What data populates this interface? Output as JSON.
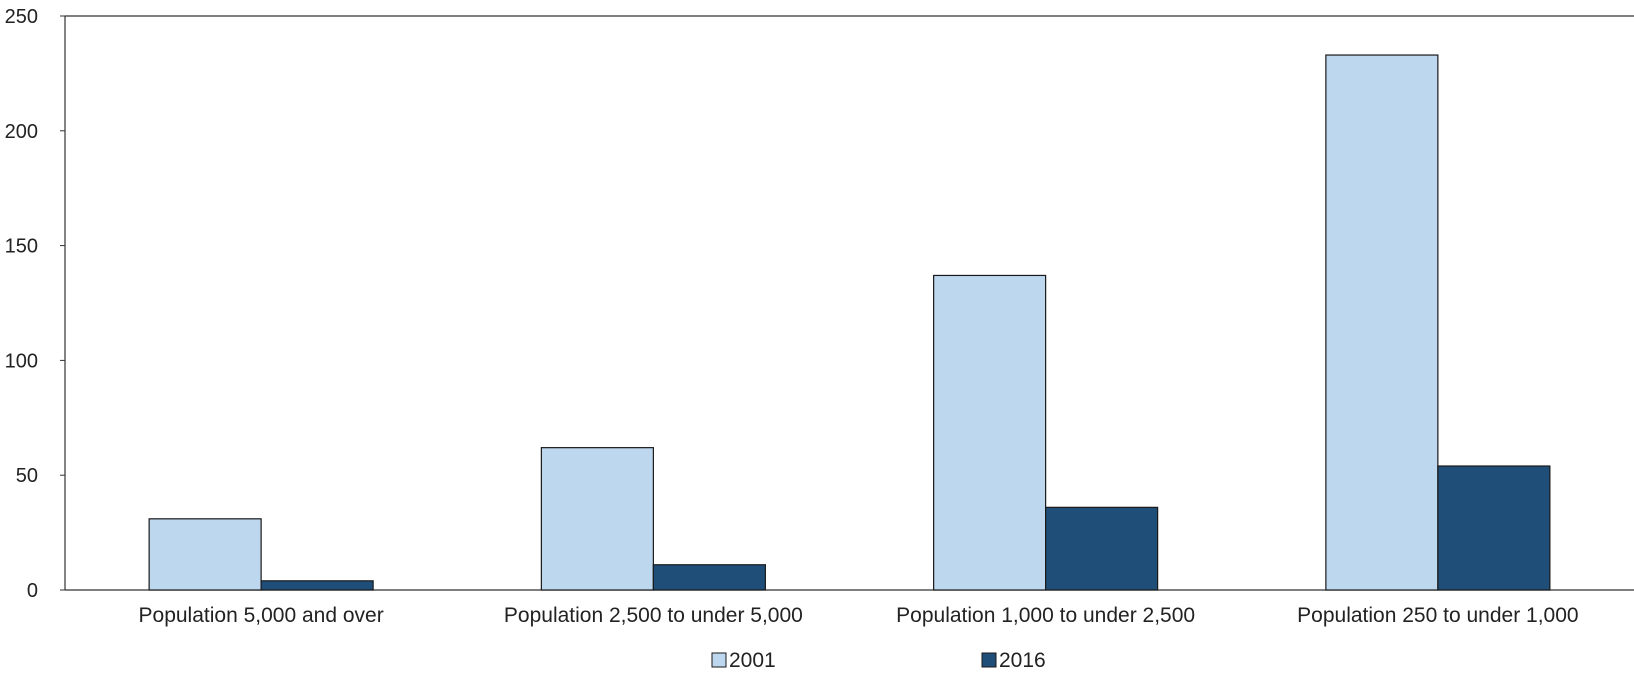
{
  "chart_data": {
    "type": "bar",
    "categories": [
      "Population 5,000 and over",
      "Population 2,500 to under 5,000",
      "Population 1,000 to under 2,500",
      "Population 250 to under 1,000"
    ],
    "series": [
      {
        "name": "2001",
        "values": [
          31,
          62,
          137,
          233
        ],
        "color": "#bdd7ee"
      },
      {
        "name": "2016",
        "values": [
          4,
          11,
          36,
          54
        ],
        "color": "#1f4e79"
      }
    ],
    "title": "",
    "xlabel": "",
    "ylabel": "",
    "ylim": [
      0,
      250
    ],
    "yticks": [
      "0",
      "50",
      "100",
      "150",
      "200",
      "250"
    ],
    "grid": false,
    "legend_position": "bottom-center"
  }
}
